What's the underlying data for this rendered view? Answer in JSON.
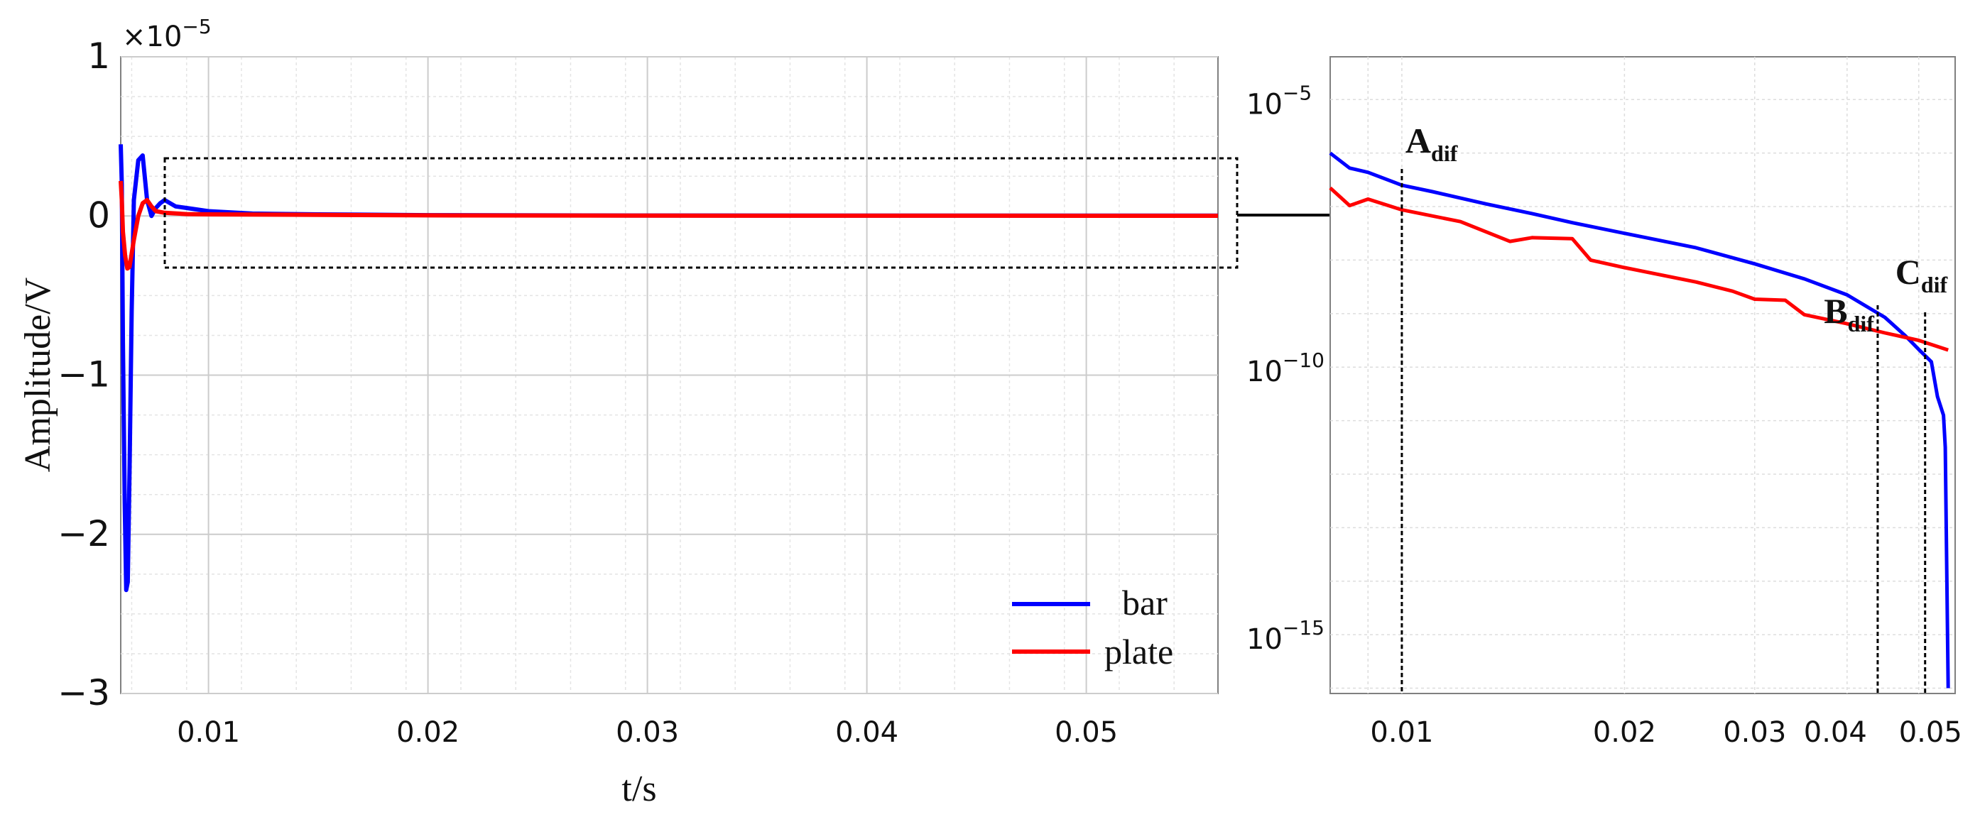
{
  "figure": {
    "exponent_prefix": "×10",
    "exponent_power": "−5",
    "main_xlabel": "t/s",
    "main_ylabel": "Amplitude/V"
  },
  "chart_data": [
    {
      "type": "line",
      "panel": "full",
      "title": "",
      "xlabel": "t/s",
      "ylabel": "Amplitude/V",
      "y_multiplier": "×10^-5",
      "xlim": [
        0.006,
        0.056
      ],
      "ylim": [
        -3,
        1
      ],
      "x_ticks": [
        0.01,
        0.02,
        0.03,
        0.04,
        0.05
      ],
      "x_tick_labels": [
        "0.01",
        "0.02",
        "0.03",
        "0.04",
        "0.05"
      ],
      "y_ticks": [
        1,
        0,
        -1,
        -2,
        -3
      ],
      "y_tick_labels": [
        "1",
        "0",
        "−1",
        "−2",
        "−3"
      ],
      "grid": true,
      "legend_position": "bottom-right",
      "series": [
        {
          "name": "bar",
          "color": "#0000ff",
          "points": [
            [
              0.006,
              0.45
            ],
            [
              0.00605,
              0.2
            ],
            [
              0.0061,
              -0.8
            ],
            [
              0.00618,
              -1.8
            ],
            [
              0.00625,
              -2.35
            ],
            [
              0.00632,
              -2.3
            ],
            [
              0.0064,
              -1.6
            ],
            [
              0.0065,
              -0.6
            ],
            [
              0.0066,
              0.1
            ],
            [
              0.0068,
              0.35
            ],
            [
              0.007,
              0.38
            ],
            [
              0.0072,
              0.1
            ],
            [
              0.0074,
              0.0
            ],
            [
              0.0076,
              0.05
            ],
            [
              0.0078,
              0.08
            ],
            [
              0.008,
              0.1
            ],
            [
              0.0085,
              0.06
            ],
            [
              0.009,
              0.05
            ],
            [
              0.01,
              0.03
            ],
            [
              0.012,
              0.015
            ],
            [
              0.015,
              0.01
            ],
            [
              0.02,
              0.005
            ],
            [
              0.03,
              0.003
            ],
            [
              0.04,
              0.002
            ],
            [
              0.056,
              0.002
            ]
          ]
        },
        {
          "name": "plate",
          "color": "#ff0000",
          "points": [
            [
              0.006,
              0.22
            ],
            [
              0.00605,
              0.1
            ],
            [
              0.0061,
              -0.1
            ],
            [
              0.0062,
              -0.25
            ],
            [
              0.0063,
              -0.33
            ],
            [
              0.0064,
              -0.32
            ],
            [
              0.0066,
              -0.15
            ],
            [
              0.0068,
              0.0
            ],
            [
              0.007,
              0.08
            ],
            [
              0.0072,
              0.1
            ],
            [
              0.0074,
              0.06
            ],
            [
              0.0076,
              0.03
            ],
            [
              0.008,
              0.02
            ],
            [
              0.009,
              0.012
            ],
            [
              0.01,
              0.01
            ],
            [
              0.02,
              0.004
            ],
            [
              0.03,
              0.002
            ],
            [
              0.056,
              0.001
            ]
          ]
        }
      ]
    },
    {
      "type": "line",
      "panel": "zoom",
      "title": "",
      "xlabel": "",
      "ylabel": "",
      "x_scale": "log",
      "y_scale": "log",
      "xlim": [
        0.008,
        0.056
      ],
      "y_exponent_range": [
        -16,
        -5
      ],
      "x_ticks": [
        0.01,
        0.02,
        0.03,
        0.04,
        0.05
      ],
      "x_tick_labels": [
        "0.01",
        "0.02",
        "0.03",
        "0.04",
        "0.05"
      ],
      "y_ticks": [
        -5,
        -10,
        -15
      ],
      "y_tick_labels": [
        "10",
        "10",
        "10"
      ],
      "y_tick_exponents": [
        "−5",
        "−10",
        "−15"
      ],
      "grid": true,
      "series": [
        {
          "name": "bar",
          "color": "#0000ff",
          "points": [
            [
              0.008,
              -6.0
            ],
            [
              0.0085,
              -6.28
            ],
            [
              0.009,
              -6.36
            ],
            [
              0.01,
              -6.6
            ],
            [
              0.011,
              -6.72
            ],
            [
              0.013,
              -6.95
            ],
            [
              0.015,
              -7.13
            ],
            [
              0.017,
              -7.3
            ],
            [
              0.02,
              -7.5
            ],
            [
              0.025,
              -7.77
            ],
            [
              0.03,
              -8.07
            ],
            [
              0.035,
              -8.35
            ],
            [
              0.04,
              -8.65
            ],
            [
              0.045,
              -9.07
            ],
            [
              0.048,
              -9.42
            ],
            [
              0.05,
              -9.67
            ],
            [
              0.052,
              -9.9
            ],
            [
              0.053,
              -10.55
            ],
            [
              0.054,
              -10.9
            ],
            [
              0.0543,
              -11.5
            ],
            [
              0.0548,
              -16.0
            ]
          ]
        },
        {
          "name": "plate",
          "color": "#ff0000",
          "points": [
            [
              0.008,
              -6.65
            ],
            [
              0.0085,
              -6.98
            ],
            [
              0.009,
              -6.86
            ],
            [
              0.01,
              -7.06
            ],
            [
              0.012,
              -7.28
            ],
            [
              0.014,
              -7.65
            ],
            [
              0.015,
              -7.58
            ],
            [
              0.017,
              -7.6
            ],
            [
              0.018,
              -8.0
            ],
            [
              0.02,
              -8.14
            ],
            [
              0.025,
              -8.41
            ],
            [
              0.028,
              -8.58
            ],
            [
              0.03,
              -8.73
            ],
            [
              0.033,
              -8.75
            ],
            [
              0.035,
              -9.02
            ],
            [
              0.04,
              -9.19
            ],
            [
              0.045,
              -9.36
            ],
            [
              0.05,
              -9.5
            ],
            [
              0.0548,
              -9.68
            ]
          ]
        }
      ]
    }
  ],
  "annotations": [
    {
      "letter": "A",
      "sub": "dif",
      "x": 0.01
    },
    {
      "letter": "B",
      "sub": "dif",
      "x": 0.044
    },
    {
      "letter": "C",
      "sub": "dif",
      "x": 0.051
    }
  ],
  "legend": [
    {
      "label": "bar",
      "color": "#0000ff"
    },
    {
      "label": "plate",
      "color": "#ff0000"
    }
  ]
}
